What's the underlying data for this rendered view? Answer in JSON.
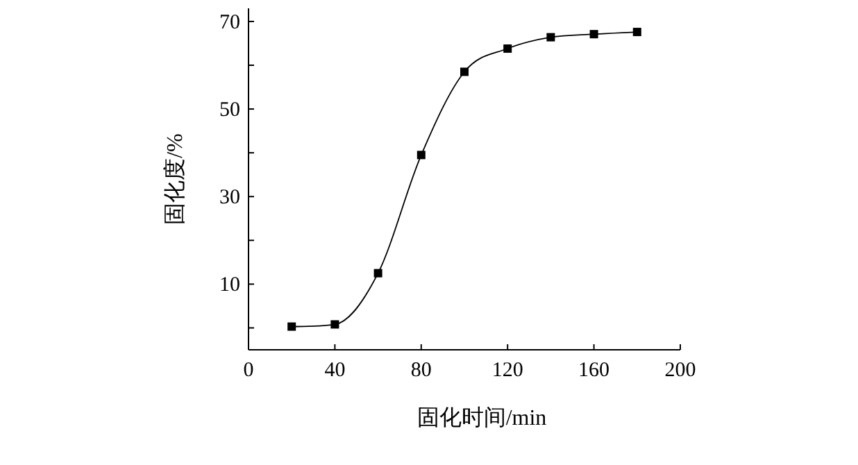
{
  "chart_data": {
    "type": "line",
    "xlabel": "固化时间/min",
    "ylabel": "固化度/%",
    "x": [
      20,
      40,
      60,
      80,
      100,
      120,
      140,
      160,
      180
    ],
    "series": [
      {
        "color": "#000000",
        "values": [
          0.3,
          0.8,
          12.5,
          39.5,
          58.5,
          63.8,
          66.4,
          67.1,
          67.6
        ]
      }
    ],
    "marker": "square",
    "line_style": "solid",
    "xlim": [
      0,
      200
    ],
    "xticks": [
      0,
      40,
      80,
      120,
      160,
      200
    ],
    "ylim": [
      -5,
      73
    ],
    "yticks": [
      {
        "value": 0,
        "label": null
      },
      10,
      {
        "value": 20,
        "label": null
      },
      30,
      {
        "value": 40,
        "label": null
      },
      50,
      {
        "value": 60,
        "label": null
      },
      70
    ],
    "grid": false
  }
}
